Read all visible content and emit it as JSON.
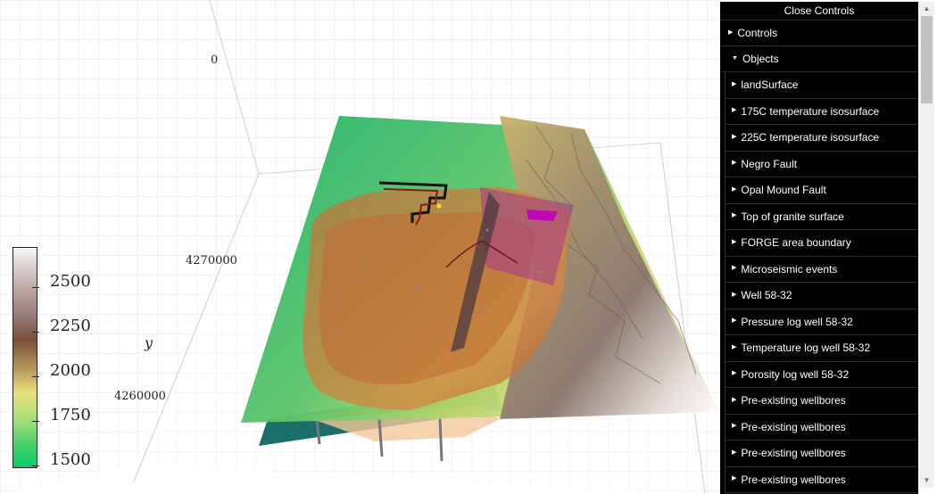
{
  "axes": {
    "z_tick": "0",
    "y_ticks": [
      "4270000",
      "4260000"
    ],
    "y_title": "y"
  },
  "colorbar": {
    "labels": [
      "2500",
      "2250",
      "2000",
      "1750",
      "1500"
    ],
    "range": [
      1450,
      2600
    ]
  },
  "controls": {
    "close_label": "Close Controls",
    "folders": {
      "controls": "Controls",
      "objects": "Objects"
    },
    "objects": [
      "landSurface",
      "175C temperature isosurface",
      "225C temperature isosurface",
      "Negro Fault",
      "Opal Mound Fault",
      "Top of granite surface",
      "FORGE area boundary",
      "Microseismic events",
      "Well 58-32",
      "Pressure log well 58-32",
      "Temperature log well 58-32",
      "Porosity log well 58-32",
      "Pre-existing wellbores",
      "Pre-existing wellbores",
      "Pre-existing wellbores",
      "Pre-existing wellbores"
    ]
  },
  "icons": {
    "collapsed": "triangle-right-icon",
    "expanded": "triangle-down-icon"
  }
}
